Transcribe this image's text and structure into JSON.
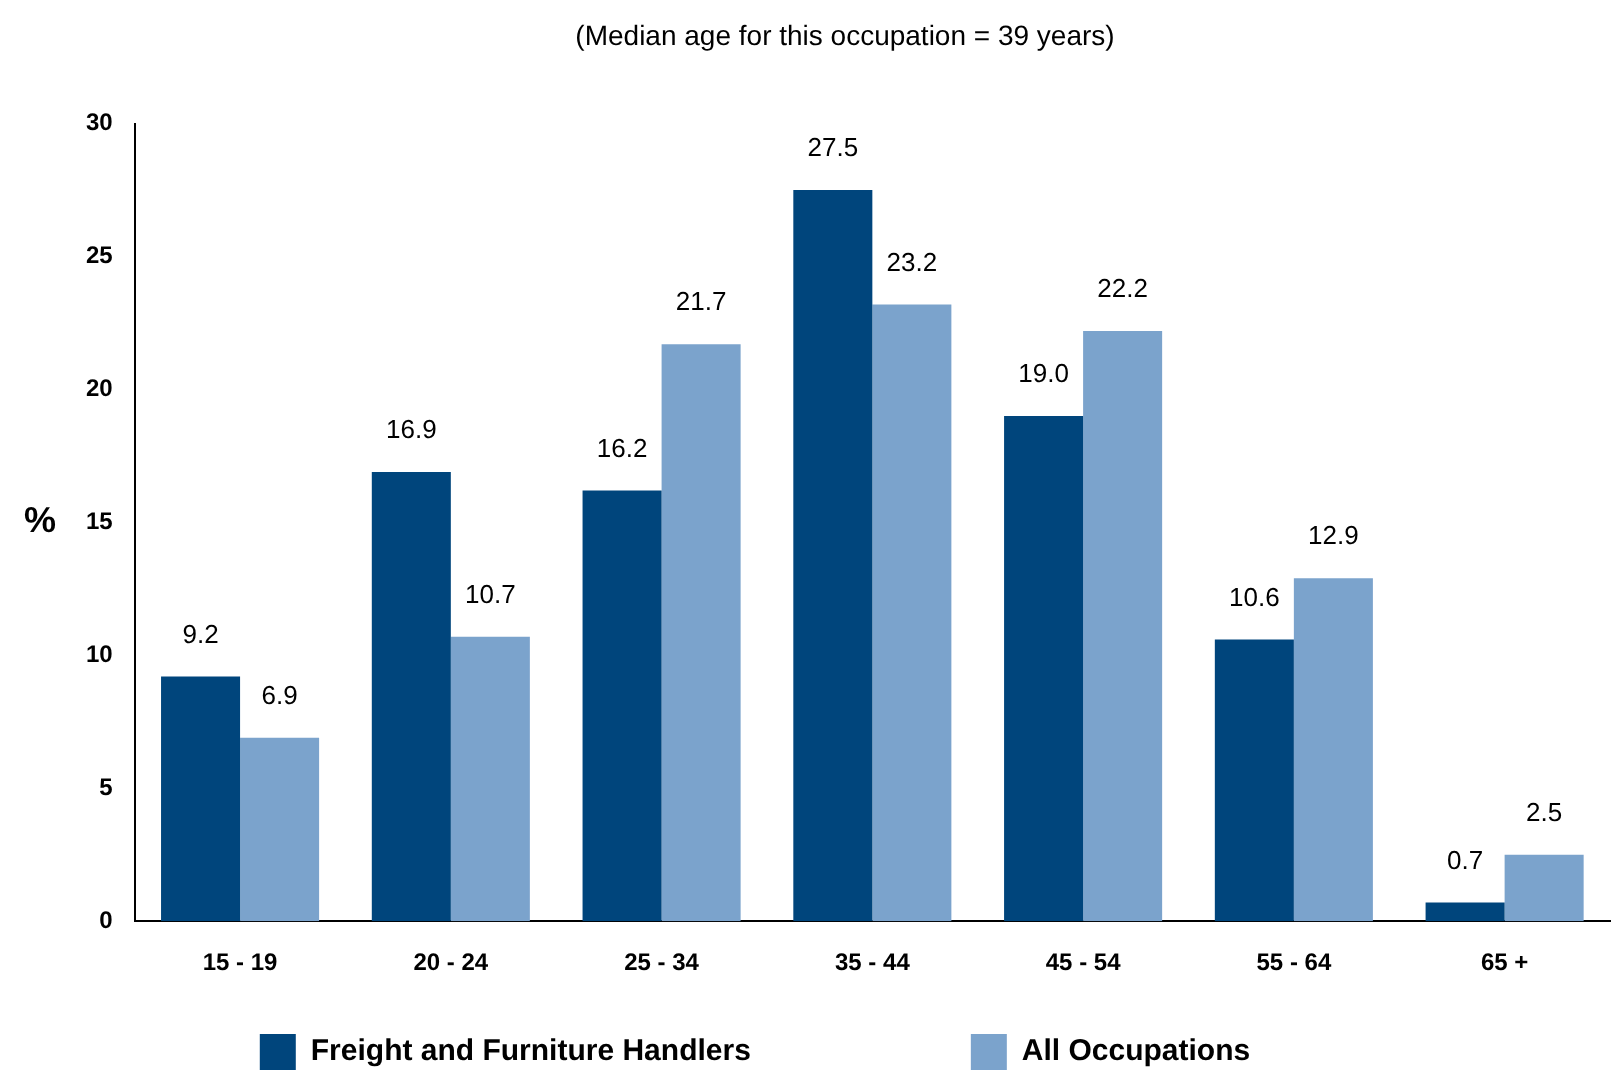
{
  "chart_data": {
    "type": "bar",
    "title": "(Median age for this occupation = 39 years)",
    "ylabel": "%",
    "categories": [
      "15 - 19",
      "20 - 24",
      "25 - 34",
      "35 - 44",
      "45 - 54",
      "55 - 64",
      "65 +"
    ],
    "series": [
      {
        "name": "Freight and Furniture Handlers",
        "color": "#00457c",
        "values": [
          9.2,
          16.9,
          16.2,
          27.5,
          19.0,
          10.6,
          0.7
        ],
        "value_labels": [
          "9.2",
          "16.9",
          "16.2",
          "27.5",
          "19.0",
          "10.6",
          "0.7"
        ]
      },
      {
        "name": "All Occupations",
        "color": "#7ba3cc",
        "values": [
          6.9,
          10.7,
          21.7,
          23.2,
          22.2,
          12.9,
          2.5
        ],
        "value_labels": [
          "6.9",
          "10.7",
          "21.7",
          "23.2",
          "22.2",
          "12.9",
          "2.5"
        ]
      }
    ],
    "ylim": [
      0,
      30
    ],
    "yticks": [
      0,
      5,
      10,
      15,
      20,
      25,
      30
    ],
    "grid": false,
    "legend": "bottom"
  }
}
